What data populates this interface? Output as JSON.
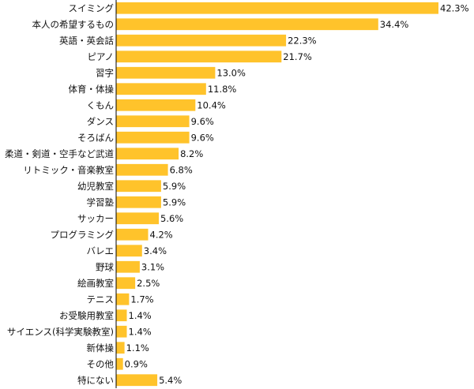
{
  "chart_data": {
    "type": "bar",
    "orientation": "horizontal",
    "title": "",
    "xlabel": "",
    "ylabel": "",
    "unit": "%",
    "xlim": [
      0,
      45
    ],
    "grid": false,
    "legend": "none",
    "bar_color": "#FFC32B",
    "axis_color": "#000000",
    "categories": [
      "スイミング",
      "本人の希望するもの",
      "英語・英会話",
      "ピアノ",
      "習字",
      "体育・体操",
      "くもん",
      "ダンス",
      "そろばん",
      "柔道・剣道・空手など武道",
      "リトミック・音楽教室",
      "幼児教室",
      "学習塾",
      "サッカー",
      "プログラミング",
      "バレエ",
      "野球",
      "絵画教室",
      "テニス",
      "お受験用教室",
      "サイエンス(科学実験教室)",
      "新体操",
      "その他",
      "特にない"
    ],
    "values": [
      42.3,
      34.4,
      22.3,
      21.7,
      13.0,
      11.8,
      10.4,
      9.6,
      9.6,
      8.2,
      6.8,
      5.9,
      5.9,
      5.6,
      4.2,
      3.4,
      3.1,
      2.5,
      1.7,
      1.4,
      1.4,
      1.1,
      0.9,
      5.4
    ],
    "value_labels": [
      "42.3%",
      "34.4%",
      "22.3%",
      "21.7%",
      "13.0%",
      "11.8%",
      "10.4%",
      "9.6%",
      "9.6%",
      "8.2%",
      "6.8%",
      "5.9%",
      "5.9%",
      "5.6%",
      "4.2%",
      "3.4%",
      "3.1%",
      "2.5%",
      "1.7%",
      "1.4%",
      "1.4%",
      "1.1%",
      "0.9%",
      "5.4%"
    ]
  }
}
